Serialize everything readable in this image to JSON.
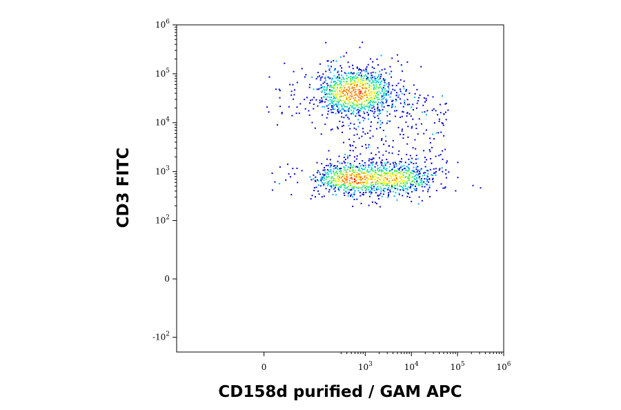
{
  "chart_data": {
    "type": "scatter",
    "subtype": "flow-cytometry density dot plot",
    "xlabel": "CD158d purified / GAM APC",
    "ylabel": "CD3 FITC",
    "x_scale": "biexponential",
    "y_scale": "biexponential",
    "xlim": [
      -500,
      1000000
    ],
    "ylim": [
      -200,
      1000000
    ],
    "x_ticks": [
      {
        "value": 0,
        "base": "0",
        "exp": ""
      },
      {
        "value": 1000,
        "base": "10",
        "exp": "3"
      },
      {
        "value": 10000,
        "base": "10",
        "exp": "4"
      },
      {
        "value": 100000,
        "base": "10",
        "exp": "5"
      },
      {
        "value": 1000000,
        "base": "10",
        "exp": "6"
      }
    ],
    "y_ticks": [
      {
        "value": -100,
        "base": "-10",
        "exp": "2"
      },
      {
        "value": 0,
        "base": "0",
        "exp": ""
      },
      {
        "value": 100,
        "base": "10",
        "exp": "2"
      },
      {
        "value": 1000,
        "base": "10",
        "exp": "3"
      },
      {
        "value": 10000,
        "base": "10",
        "exp": "4"
      },
      {
        "value": 100000,
        "base": "10",
        "exp": "5"
      },
      {
        "value": 1000000,
        "base": "10",
        "exp": "6"
      }
    ],
    "populations": [
      {
        "description": "CD3+ CD158d- cluster",
        "x_center": 600,
        "y_center": 42000,
        "peak_density": "high"
      },
      {
        "description": "CD3- CD158d- cluster",
        "x_center": 550,
        "y_center": 720,
        "peak_density": "medium"
      },
      {
        "description": "CD3- CD158d+ cluster",
        "x_center": 4000,
        "y_center": 720,
        "peak_density": "medium"
      }
    ],
    "color_scale": [
      "#0000cc",
      "#00aaff",
      "#00e0c0",
      "#40f040",
      "#f0f000",
      "#ff8000",
      "#ff0000"
    ],
    "grid": false,
    "legend": "none"
  }
}
